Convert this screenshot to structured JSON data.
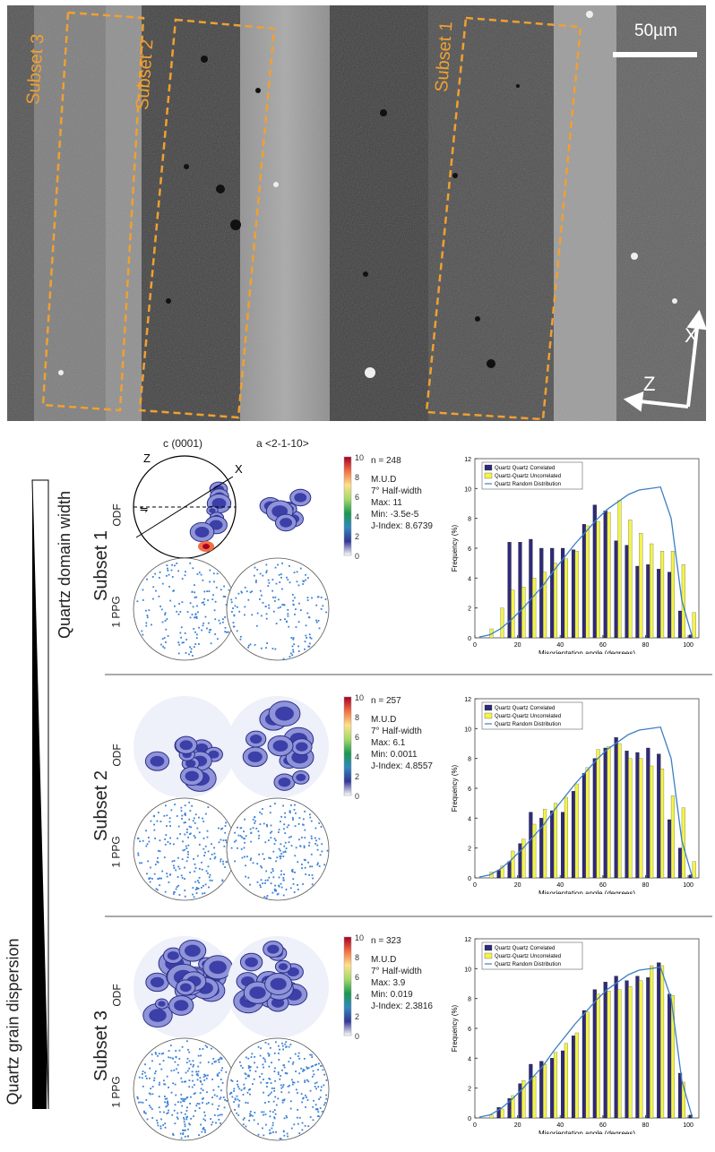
{
  "micrograph": {
    "scale_label": "50µm",
    "subsets": [
      "Subset 3",
      "Subset 2",
      "Subset 1"
    ],
    "axis_x": "X",
    "axis_z": "Z"
  },
  "side": {
    "domain_width_label": "Quartz domain width",
    "dispersion_label": "Quartz grain dispersion"
  },
  "pole_headers": {
    "c": "c (0001)",
    "a": "a <2-1-10>"
  },
  "row_labels": {
    "odf": "ODF",
    "ppg": "1 PPG"
  },
  "stereonet_labels": {
    "z": "Z",
    "x": "X",
    "shear": "⇋"
  },
  "colorbar": {
    "ticks": [
      "10",
      "8",
      "6",
      "4",
      "2",
      "0"
    ],
    "colors": [
      "#a50026",
      "#f46d43",
      "#fee08b",
      "#a6d96a",
      "#1a9850",
      "#3288bd",
      "#313695",
      "#ffffff"
    ]
  },
  "subsets": [
    {
      "name": "Subset 1",
      "stats": [
        "n = 248",
        "M.U.D",
        "7° Half-width",
        "Max: 11",
        "Min: -3.5e-5",
        "J-Index: 8.6739"
      ]
    },
    {
      "name": "Subset 2",
      "stats": [
        "n = 257",
        "M.U.D",
        "7° Half-width",
        "Max: 6.1",
        "Min: 0.0011",
        "J-Index: 4.8557"
      ]
    },
    {
      "name": "Subset 3",
      "stats": [
        "n = 323",
        "M.U.D",
        "7° Half-width",
        "Max: 3.9",
        "Min: 0.019",
        "J-Index: 2.3816"
      ]
    }
  ],
  "chart_data": [
    {
      "type": "bar",
      "xlabel": "Misorientation angle (degrees)",
      "ylabel": "Frequency (%)",
      "xlim": [
        0,
        105
      ],
      "ylim": [
        0,
        12
      ],
      "xticks": [
        "0",
        "20",
        "40",
        "60",
        "80",
        "100"
      ],
      "yticks": [
        "0",
        "2",
        "4",
        "6",
        "8",
        "10",
        "12"
      ],
      "legend": [
        "Quartz Quartz Correlated",
        "Quartz-Quartz Uncorrelated",
        "Quartz Random Distribution"
      ],
      "x": [
        2,
        7,
        12,
        17,
        22,
        27,
        32,
        37,
        42,
        47,
        52,
        57,
        62,
        67,
        72,
        77,
        82,
        87,
        92,
        97,
        102
      ],
      "series": [
        {
          "name": "Quartz Quartz Correlated",
          "values": [
            0.0,
            0.0,
            0.0,
            6.4,
            6.4,
            6.6,
            6.0,
            6.0,
            6.0,
            5.9,
            7.6,
            8.9,
            8.5,
            6.5,
            6.2,
            4.8,
            4.9,
            4.6,
            4.4,
            1.8,
            0.2
          ]
        },
        {
          "name": "Quartz-Quartz Uncorrelated",
          "values": [
            0.0,
            0.6,
            2.0,
            3.2,
            3.4,
            4.0,
            4.4,
            5.0,
            5.3,
            5.8,
            7.5,
            7.8,
            8.4,
            9.2,
            7.9,
            7.0,
            6.3,
            5.8,
            5.8,
            4.9,
            1.7
          ]
        },
        {
          "name": "Quartz Random Distribution",
          "values": [
            0.05,
            0.2,
            0.6,
            1.2,
            1.9,
            2.7,
            3.5,
            4.5,
            5.4,
            6.3,
            7.1,
            7.9,
            8.6,
            9.1,
            9.6,
            9.9,
            10.0,
            10.1,
            8.0,
            2.5,
            0.0
          ]
        }
      ]
    },
    {
      "type": "bar",
      "xlabel": "Misorientation angle (degrees)",
      "ylabel": "Frequency (%)",
      "xlim": [
        0,
        105
      ],
      "ylim": [
        0,
        12
      ],
      "xticks": [
        "0",
        "20",
        "40",
        "60",
        "80",
        "100"
      ],
      "yticks": [
        "0",
        "2",
        "4",
        "6",
        "8",
        "10",
        "12"
      ],
      "legend": [
        "Quartz Quartz Correlated",
        "Quartz-Quartz Uncorrelated",
        "Quartz Random Distribution"
      ],
      "x": [
        2,
        7,
        12,
        17,
        22,
        27,
        32,
        37,
        42,
        47,
        52,
        57,
        62,
        67,
        72,
        77,
        82,
        87,
        92,
        97,
        102
      ],
      "series": [
        {
          "name": "Quartz Quartz Correlated",
          "values": [
            0.0,
            0.0,
            0.5,
            1.1,
            2.3,
            4.4,
            4.0,
            4.5,
            4.4,
            5.8,
            7.0,
            8.0,
            8.7,
            9.4,
            8.5,
            8.4,
            8.7,
            8.3,
            3.9,
            2.0,
            0.2
          ]
        },
        {
          "name": "Quartz-Quartz Uncorrelated",
          "values": [
            0.0,
            0.4,
            0.8,
            1.8,
            2.6,
            3.6,
            4.6,
            5.0,
            5.4,
            6.3,
            7.4,
            8.6,
            8.8,
            9.0,
            8.0,
            8.0,
            7.5,
            7.3,
            5.5,
            4.7,
            1.1
          ]
        },
        {
          "name": "Quartz Random Distribution",
          "values": [
            0.05,
            0.2,
            0.6,
            1.2,
            1.9,
            2.7,
            3.5,
            4.5,
            5.4,
            6.3,
            7.1,
            7.9,
            8.6,
            9.1,
            9.6,
            9.9,
            10.0,
            10.1,
            8.0,
            2.5,
            0.0
          ]
        }
      ]
    },
    {
      "type": "bar",
      "xlabel": "Misorientation angle (degrees)",
      "ylabel": "Frequency (%)",
      "xlim": [
        0,
        105
      ],
      "ylim": [
        0,
        12
      ],
      "xticks": [
        "0",
        "20",
        "40",
        "60",
        "80",
        "100"
      ],
      "yticks": [
        "0",
        "2",
        "4",
        "6",
        "8",
        "10",
        "12"
      ],
      "legend": [
        "Quartz Quartz Correlated",
        "Quartz-Quartz Uncorrelated",
        "Quartz Random Distribution"
      ],
      "x": [
        2,
        7,
        12,
        17,
        22,
        27,
        32,
        37,
        42,
        47,
        52,
        57,
        62,
        67,
        72,
        77,
        82,
        87,
        92,
        97,
        102
      ],
      "series": [
        {
          "name": "Quartz Quartz Correlated",
          "values": [
            0.0,
            0.0,
            0.7,
            1.3,
            2.3,
            3.6,
            3.8,
            4.0,
            4.5,
            5.5,
            7.2,
            8.6,
            9.1,
            9.5,
            9.2,
            9.5,
            9.4,
            10.4,
            8.3,
            3.0,
            0.2
          ]
        },
        {
          "name": "Quartz-Quartz Uncorrelated",
          "values": [
            0.0,
            0.2,
            0.6,
            1.5,
            2.5,
            2.8,
            3.6,
            4.4,
            5.0,
            5.7,
            7.1,
            8.3,
            8.5,
            8.6,
            8.8,
            9.2,
            10.2,
            10.2,
            8.2,
            2.4,
            0.0
          ]
        },
        {
          "name": "Quartz Random Distribution",
          "values": [
            0.05,
            0.2,
            0.6,
            1.2,
            1.9,
            2.7,
            3.5,
            4.5,
            5.4,
            6.3,
            7.1,
            7.9,
            8.6,
            9.1,
            9.6,
            9.9,
            10.0,
            10.1,
            8.0,
            2.5,
            0.0
          ]
        }
      ]
    }
  ]
}
